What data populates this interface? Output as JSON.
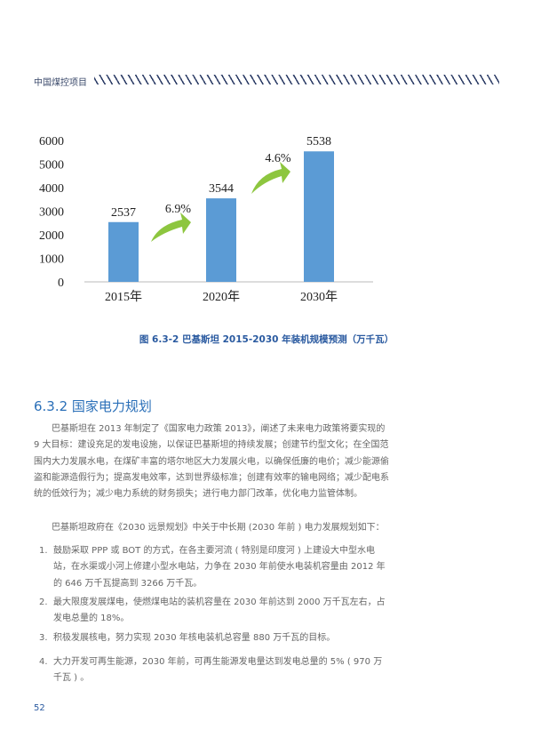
{
  "header": {
    "title": "中国煤控项目"
  },
  "chart_data": {
    "type": "bar",
    "categories": [
      "2015年",
      "2020年",
      "2030年"
    ],
    "values": [
      2537,
      3544,
      5538
    ],
    "ylim": [
      0,
      6000
    ],
    "yticks": [
      0,
      1000,
      2000,
      3000,
      4000,
      5000,
      6000
    ],
    "growth_annotations": [
      "6.9%",
      "4.6%"
    ],
    "bar_color": "#5b9bd5",
    "arrow_color": "#8dc63f",
    "grid": false
  },
  "caption": "图 6.3-2  巴基斯坦 2015-2030 年装机规模预测（万千瓦）",
  "section": {
    "heading": "6.3.2 国家电力规划",
    "para1": "　　巴基斯坦在 2013 年制定了《国家电力政策 2013》，阐述了未来电力政策将要实现的 9 大目标：建设充足的发电设施，以保证巴基斯坦的持续发展；创建节约型文化；在全国范围内大力发展水电，在煤矿丰富的塔尔地区大力发展火电，以确保低廉的电价；减少能源偷盗和能源造假行为；提高发电效率，达到世界级标准；创建有效率的输电网络；减少配电系统的低效行为；减少电力系统的财务损失；进行电力部门改革，优化电力监管体制。",
    "para2": "　　巴基斯坦政府在《2030 远景规划》中关于中长期 (2030 年前 ) 电力发展规划如下：",
    "items": [
      {
        "num": "1.",
        "text": "鼓励采取 PPP 或 BOT 的方式，在各主要河流 ( 特别是印度河 ) 上建设大中型水电站，在水渠或小河上修建小型水电站，力争在 2030 年前使水电装机容量由 2012 年的 646 万千瓦提高到 3266 万千瓦。"
      },
      {
        "num": "2.",
        "text": "最大限度发展煤电，使燃煤电站的装机容量在 2030 年前达到 2000 万千瓦左右，占发电总量的 18%。"
      },
      {
        "num": "3.",
        "text": "积极发展核电，努力实现 2030 年核电装机总容量 880 万千瓦的目标。"
      },
      {
        "num": "4.",
        "text": "大力开发可再生能源，2030 年前，可再生能源发电量达到发电总量的 5% ( 970 万千瓦 ) 。"
      }
    ]
  },
  "page_number": "52"
}
